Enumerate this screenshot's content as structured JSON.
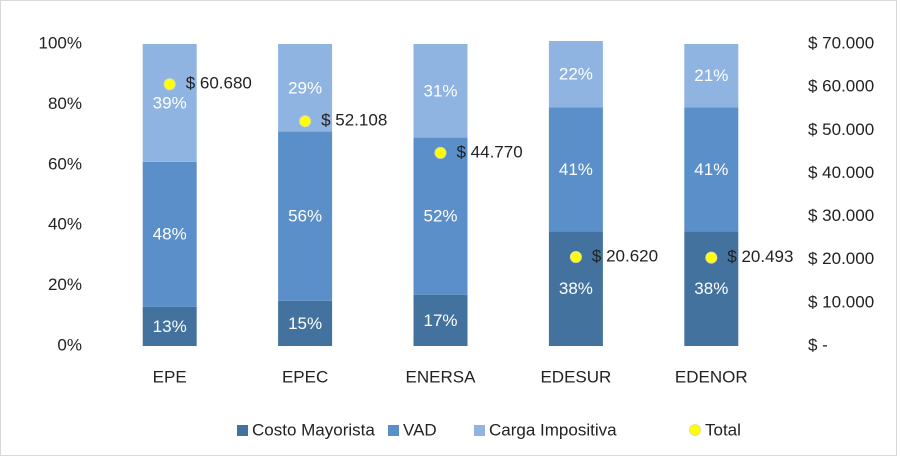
{
  "chart_data": {
    "type": "bar",
    "stacked": true,
    "categories": [
      "EPE",
      "EPEC",
      "ENERSA",
      "EDESUR",
      "EDENOR"
    ],
    "series": [
      {
        "name": "Costo Mayorista",
        "color": "#43729f",
        "values": [
          13,
          15,
          17,
          38,
          38
        ],
        "value_labels": [
          "13%",
          "15%",
          "17%",
          "38%",
          "38%"
        ]
      },
      {
        "name": "VAD",
        "color": "#5a8fca",
        "values": [
          48,
          56,
          52,
          41,
          41
        ],
        "value_labels": [
          "48%",
          "56%",
          "52%",
          "41%",
          "41%"
        ]
      },
      {
        "name": "Carga Impositiva",
        "color": "#8fb4e1",
        "values": [
          39,
          29,
          31,
          22,
          21
        ],
        "value_labels": [
          "39%",
          "29%",
          "31%",
          "22%",
          "21%"
        ]
      },
      {
        "name": "Total",
        "color": "#ffff00",
        "axis": "y2",
        "values": [
          60680,
          52108,
          44770,
          20620,
          20493
        ],
        "value_labels": [
          "$ 60.680",
          "$ 52.108",
          "$ 44.770",
          "$ 20.620",
          "$ 20.493"
        ]
      }
    ],
    "ylim": [
      0,
      100
    ],
    "yticks": [
      {
        "value": 0,
        "label": "0%"
      },
      {
        "value": 20,
        "label": "20%"
      },
      {
        "value": 40,
        "label": "40%"
      },
      {
        "value": 60,
        "label": "60%"
      },
      {
        "value": 80,
        "label": "80%"
      },
      {
        "value": 100,
        "label": "100%"
      }
    ],
    "y2lim": [
      0,
      70000
    ],
    "y2ticks": [
      {
        "value": 0,
        "label": "$ -"
      },
      {
        "value": 10000,
        "label": "$ 10.000"
      },
      {
        "value": 20000,
        "label": "$ 20.000"
      },
      {
        "value": 30000,
        "label": "$ 30.000"
      },
      {
        "value": 40000,
        "label": "$ 40.000"
      },
      {
        "value": 50000,
        "label": "$ 50.000"
      },
      {
        "value": 60000,
        "label": "$ 60.000"
      },
      {
        "value": 70000,
        "label": "$ 70.000"
      }
    ],
    "grid": false,
    "legend": "bottom"
  }
}
